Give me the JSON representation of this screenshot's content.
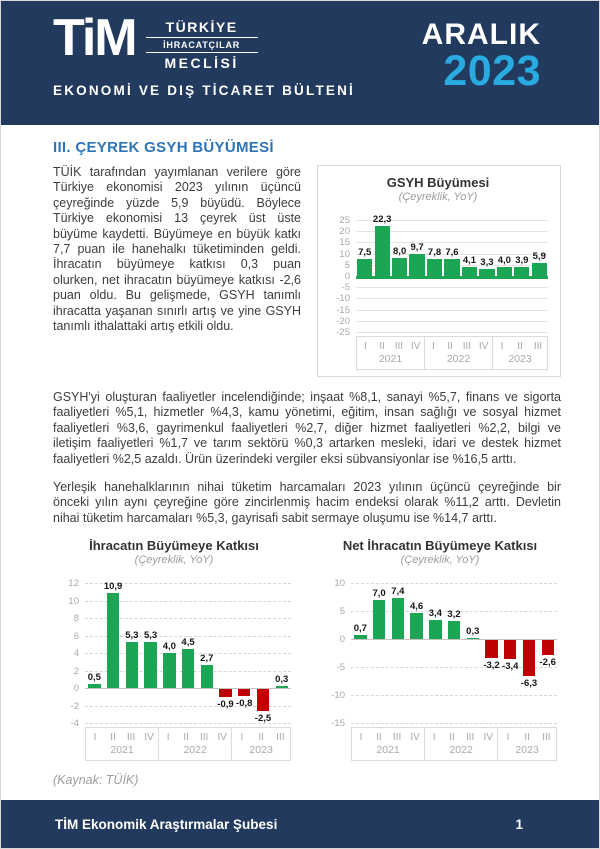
{
  "header": {
    "logo_text": "TiM",
    "logo_stack": [
      "TÜRKİYE",
      "İHRACATÇILAR",
      "MECLİSİ"
    ],
    "bulletin_title": "EKONOMİ VE DIŞ TİCARET BÜLTENİ",
    "month": "ARALIK",
    "year": "2023"
  },
  "colors": {
    "navy": "#223a5e",
    "light_blue": "#29abe2",
    "title_blue": "#2e75b6",
    "positive_green": "#1ca653",
    "negative_red": "#c00000"
  },
  "section_title": "III. ÇEYREK GSYH BÜYÜMESİ",
  "paragraphs": {
    "p1": "TÜİK tarafından yayımlanan verilere göre Türkiye ekonomisi 2023 yılının üçüncü çeyreğinde yüzde 5,9 büyüdü. Böylece Türkiye ekonomisi 13 çeyrek üst üste büyüme kaydetti. Büyümeye en büyük katkı 7,7 puan ile hanehalkı tüketiminden geldi. İhracatın büyümeye katkısı 0,3 puan olurken, net ihracatın büyümeye katkısı -2,6 puan oldu. Bu gelişmede, GSYH tanımlı ihracatta yaşanan sınırlı artış ve yine GSYH tanımlı ithalattaki artış etkili oldu.",
    "p2": "GSYH'yi oluşturan faaliyetler incelendiğinde; inşaat %8,1, sanayi %5,7, finans ve sigorta faaliyetleri %5,1, hizmetler %4,3, kamu yönetimi, eğitim, insan sağlığı ve sosyal hizmet faaliyetleri %3,6, gayrimenkul faaliyetleri %2,7, diğer hizmet faaliyetleri %2,2, bilgi ve iletişim faaliyetleri %1,7 ve tarım sektörü %0,3 artarken mesleki, idari ve destek hizmet faaliyetleri %2,5 azaldı. Ürün üzerindeki vergiler eksi sübvansiyonlar ise %16,5 arttı.",
    "p3": "Yerleşik hanehalklarının nihai tüketim harcamaları 2023 yılının üçüncü çeyreğinde bir önceki yılın aynı çeyreğine göre zincirlenmiş hacim endeksi olarak %11,2 arttı. Devletin nihai tüketim harcamaları %5,3, gayrisafi sabit sermaye oluşumu ise %14,7 arttı."
  },
  "source_note": "(Kaynak: TÜİK)",
  "footer": {
    "left": "TİM Ekonomik Araştırmalar Şubesi",
    "page": "1"
  },
  "chart_data": [
    {
      "type": "bar",
      "title": "GSYH Büyümesi",
      "subtitle": "(Çeyreklik, YoY)",
      "values": [
        7.5,
        22.3,
        8.0,
        9.7,
        7.8,
        7.6,
        4.1,
        3.3,
        4.0,
        3.9,
        5.9
      ],
      "labels": [
        "7,5",
        "22,3",
        "8,0",
        "9,7",
        "7,8",
        "7,6",
        "4,1",
        "3,3",
        "4,0",
        "3,9",
        "5,9"
      ],
      "ylim": [
        -25,
        25
      ],
      "yticks": [
        25,
        20,
        15,
        10,
        5,
        0,
        -5,
        -10,
        -15,
        -20,
        -25
      ],
      "grid": "solid",
      "legend": "none",
      "positive_color": "#1ca653",
      "negative_color": "#c00000",
      "groups": [
        {
          "year": "2021",
          "quarters": [
            "I",
            "II",
            "III",
            "IV"
          ]
        },
        {
          "year": "2022",
          "quarters": [
            "I",
            "II",
            "III",
            "IV"
          ]
        },
        {
          "year": "2023",
          "quarters": [
            "I",
            "II",
            "III"
          ]
        }
      ]
    },
    {
      "type": "bar",
      "title": "İhracatın Büyümeye Katkısı",
      "subtitle": "(Çeyreklik, YoY)",
      "values": [
        0.5,
        10.9,
        5.3,
        5.3,
        4.0,
        4.5,
        2.7,
        -0.9,
        -0.8,
        -2.5,
        0.3
      ],
      "labels": [
        "0,5",
        "10,9",
        "5,3",
        "5,3",
        "4,0",
        "4,5",
        "2,7",
        "-0,9",
        "-0,8",
        "-2,5",
        "0,3"
      ],
      "ylim": [
        -4,
        12
      ],
      "yticks": [
        12,
        10,
        8,
        6,
        4,
        2,
        0,
        -2,
        -4
      ],
      "grid": "dashed",
      "legend": "none",
      "positive_color": "#1ca653",
      "negative_color": "#c00000",
      "groups": [
        {
          "year": "2021",
          "quarters": [
            "I",
            "II",
            "III",
            "IV"
          ]
        },
        {
          "year": "2022",
          "quarters": [
            "I",
            "II",
            "III",
            "IV"
          ]
        },
        {
          "year": "2023",
          "quarters": [
            "I",
            "II",
            "III"
          ]
        }
      ]
    },
    {
      "type": "bar",
      "title": "Net İhracatın Büyümeye Katkısı",
      "subtitle": "(Çeyreklik, YoY)",
      "values": [
        0.7,
        7.0,
        7.4,
        4.6,
        3.4,
        3.2,
        0.3,
        -3.2,
        -3.4,
        -6.3,
        -2.6
      ],
      "labels": [
        "0,7",
        "7,0",
        "7,4",
        "4,6",
        "3,4",
        "3,2",
        "0,3",
        "-3,2",
        "-3,4",
        "-6,3",
        "-2,6"
      ],
      "ylim": [
        -15,
        10
      ],
      "yticks": [
        10,
        5,
        0,
        -5,
        -10,
        -15
      ],
      "grid": "dashed",
      "legend": "none",
      "positive_color": "#1ca653",
      "negative_color": "#c00000",
      "groups": [
        {
          "year": "2021",
          "quarters": [
            "I",
            "II",
            "III",
            "IV"
          ]
        },
        {
          "year": "2022",
          "quarters": [
            "I",
            "II",
            "III",
            "IV"
          ]
        },
        {
          "year": "2023",
          "quarters": [
            "I",
            "II",
            "III"
          ]
        }
      ]
    }
  ]
}
